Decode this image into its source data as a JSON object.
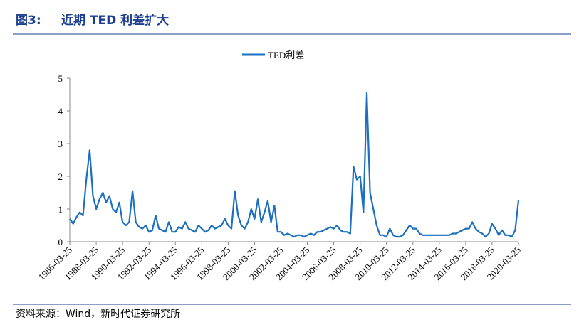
{
  "header": {
    "figure": "图3:",
    "title": "近期 TED 利差扩大"
  },
  "chart_data": {
    "type": "line",
    "x": [
      "1986-03-25",
      "1986-06-25",
      "1986-09-25",
      "1986-12-25",
      "1987-03-25",
      "1987-06-25",
      "1987-09-25",
      "1987-12-25",
      "1988-03-25",
      "1988-06-25",
      "1988-09-25",
      "1988-12-25",
      "1989-03-25",
      "1989-06-25",
      "1989-09-25",
      "1989-12-25",
      "1990-03-25",
      "1990-06-25",
      "1990-09-25",
      "1990-12-25",
      "1991-03-25",
      "1991-06-25",
      "1991-09-25",
      "1991-12-25",
      "1992-03-25",
      "1992-06-25",
      "1992-09-25",
      "1992-12-25",
      "1993-03-25",
      "1993-06-25",
      "1993-09-25",
      "1993-12-25",
      "1994-03-25",
      "1994-06-25",
      "1994-09-25",
      "1994-12-25",
      "1995-03-25",
      "1995-06-25",
      "1995-09-25",
      "1995-12-25",
      "1996-03-25",
      "1996-06-25",
      "1996-09-25",
      "1996-12-25",
      "1997-03-25",
      "1997-06-25",
      "1997-09-25",
      "1997-12-25",
      "1998-03-25",
      "1998-06-25",
      "1998-09-25",
      "1998-12-25",
      "1999-03-25",
      "1999-06-25",
      "1999-09-25",
      "1999-12-25",
      "2000-03-25",
      "2000-06-25",
      "2000-09-25",
      "2000-12-25",
      "2001-03-25",
      "2001-06-25",
      "2001-09-25",
      "2001-12-25",
      "2002-03-25",
      "2002-06-25",
      "2002-09-25",
      "2002-12-25",
      "2003-03-25",
      "2003-06-25",
      "2003-09-25",
      "2003-12-25",
      "2004-03-25",
      "2004-06-25",
      "2004-09-25",
      "2004-12-25",
      "2005-03-25",
      "2005-06-25",
      "2005-09-25",
      "2005-12-25",
      "2006-03-25",
      "2006-06-25",
      "2006-09-25",
      "2006-12-25",
      "2007-03-25",
      "2007-06-25",
      "2007-09-25",
      "2007-12-25",
      "2008-03-25",
      "2008-06-25",
      "2008-09-25",
      "2008-12-25",
      "2009-03-25",
      "2009-06-25",
      "2009-09-25",
      "2009-12-25",
      "2010-03-25",
      "2010-06-25",
      "2010-09-25",
      "2010-12-25",
      "2011-03-25",
      "2011-06-25",
      "2011-09-25",
      "2011-12-25",
      "2012-03-25",
      "2012-06-25",
      "2012-09-25",
      "2012-12-25",
      "2013-03-25",
      "2013-06-25",
      "2013-09-25",
      "2013-12-25",
      "2014-03-25",
      "2014-06-25",
      "2014-09-25",
      "2014-12-25",
      "2015-03-25",
      "2015-06-25",
      "2015-09-25",
      "2015-12-25",
      "2016-03-25",
      "2016-06-25",
      "2016-09-25",
      "2016-12-25",
      "2017-03-25",
      "2017-06-25",
      "2017-09-25",
      "2017-12-25",
      "2018-03-25",
      "2018-06-25",
      "2018-09-25",
      "2018-12-25",
      "2019-03-25",
      "2019-06-25",
      "2019-09-25",
      "2019-12-25",
      "2020-03-25"
    ],
    "series": [
      {
        "name": "TED利差",
        "color": "#1b6fc0",
        "values": [
          0.7,
          0.55,
          0.75,
          0.9,
          0.8,
          1.9,
          2.8,
          1.4,
          1.0,
          1.3,
          1.5,
          1.2,
          1.4,
          1.0,
          0.9,
          1.2,
          0.6,
          0.5,
          0.6,
          1.55,
          0.6,
          0.45,
          0.4,
          0.5,
          0.3,
          0.35,
          0.8,
          0.4,
          0.35,
          0.3,
          0.6,
          0.3,
          0.3,
          0.45,
          0.4,
          0.6,
          0.4,
          0.35,
          0.3,
          0.5,
          0.4,
          0.3,
          0.35,
          0.5,
          0.4,
          0.45,
          0.5,
          0.7,
          0.5,
          0.4,
          1.55,
          0.8,
          0.5,
          0.4,
          0.6,
          1.0,
          0.7,
          1.3,
          0.6,
          0.9,
          1.25,
          0.6,
          1.1,
          0.3,
          0.3,
          0.2,
          0.25,
          0.2,
          0.15,
          0.2,
          0.2,
          0.15,
          0.2,
          0.25,
          0.2,
          0.3,
          0.3,
          0.35,
          0.4,
          0.45,
          0.4,
          0.5,
          0.35,
          0.3,
          0.3,
          0.25,
          2.3,
          1.9,
          2.0,
          0.9,
          4.55,
          1.5,
          1.0,
          0.5,
          0.2,
          0.2,
          0.15,
          0.4,
          0.2,
          0.15,
          0.15,
          0.2,
          0.35,
          0.5,
          0.4,
          0.4,
          0.25,
          0.2,
          0.2,
          0.2,
          0.2,
          0.2,
          0.2,
          0.2,
          0.2,
          0.2,
          0.25,
          0.25,
          0.3,
          0.35,
          0.4,
          0.4,
          0.6,
          0.4,
          0.3,
          0.25,
          0.15,
          0.25,
          0.55,
          0.4,
          0.2,
          0.35,
          0.2,
          0.2,
          0.15,
          0.35,
          1.27
        ]
      }
    ],
    "xlim": [
      "1986-03-25",
      "2020-03-25"
    ],
    "xticks": [
      "1986-03-25",
      "1988-03-25",
      "1990-03-25",
      "1992-03-25",
      "1994-03-25",
      "1996-03-25",
      "1998-03-25",
      "2000-03-25",
      "2002-03-25",
      "2004-03-25",
      "2006-03-25",
      "2008-03-25",
      "2010-03-25",
      "2012-03-25",
      "2014-03-25",
      "2016-03-25",
      "2018-03-25",
      "2020-03-25"
    ],
    "ylim": [
      0,
      5
    ],
    "yticks": [
      0,
      1,
      2,
      3,
      4,
      5
    ],
    "legend": "top"
  },
  "footer": {
    "source": "资料来源：Wind，新时代证券研究所"
  }
}
